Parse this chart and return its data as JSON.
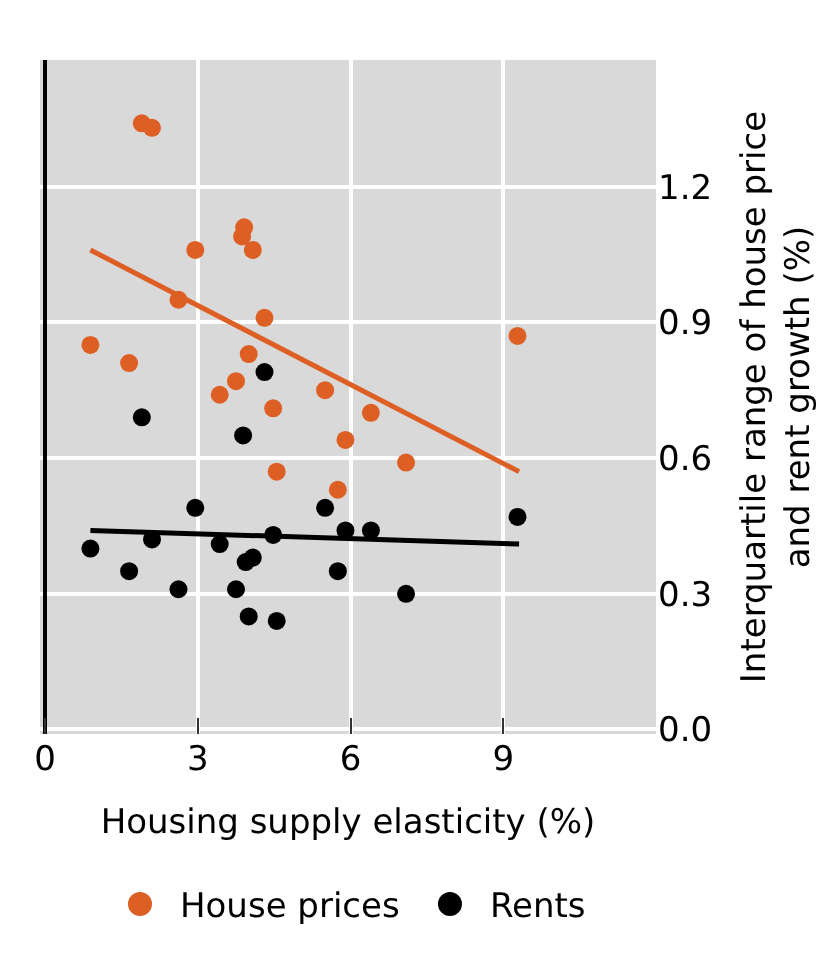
{
  "chart_data": {
    "type": "scatter",
    "xlabel": "Housing supply elasticity (%)",
    "ylabel": "Interquartile range of house price\nand rent growth (%)",
    "xlim": [
      -0.1,
      12
    ],
    "xticks": [
      0,
      3,
      6,
      9
    ],
    "ylim": [
      -0.01,
      1.48
    ],
    "yticks": [
      {
        "value": 0,
        "label": "0.0"
      },
      {
        "value": 0.3,
        "label": "0.3"
      },
      {
        "value": 0.6,
        "label": "0.6"
      },
      {
        "value": 0.9,
        "label": "0.9"
      },
      {
        "value": 1.2,
        "label": "1.2"
      }
    ],
    "grid": true,
    "legend": "bottom",
    "marker": "circle",
    "series": [
      {
        "name": "House prices",
        "color": "#dd5f24",
        "x": [
          1.9,
          2.1,
          2.95,
          3.91,
          3.87,
          4.08,
          2.62,
          4.31,
          0.89,
          9.28,
          1.65,
          4.0,
          3.75,
          3.43,
          5.5,
          4.48,
          6.4,
          5.9,
          7.09,
          4.55,
          5.75
        ],
        "values": [
          1.34,
          1.33,
          1.06,
          1.11,
          1.09,
          1.06,
          0.95,
          0.91,
          0.85,
          0.87,
          0.81,
          0.83,
          0.77,
          0.74,
          0.75,
          0.71,
          0.7,
          0.64,
          0.59,
          0.57,
          0.53
        ]
      },
      {
        "name": "Rents",
        "color": "#000000",
        "x": [
          4.31,
          1.9,
          3.89,
          2.95,
          5.5,
          9.28,
          5.9,
          6.4,
          4.48,
          2.1,
          3.43,
          0.89,
          4.08,
          3.94,
          1.65,
          5.75,
          2.62,
          3.75,
          7.09,
          4.0,
          4.55
        ],
        "values": [
          0.79,
          0.69,
          0.65,
          0.49,
          0.49,
          0.47,
          0.44,
          0.44,
          0.43,
          0.42,
          0.41,
          0.4,
          0.38,
          0.37,
          0.35,
          0.35,
          0.31,
          0.31,
          0.3,
          0.25,
          0.24
        ]
      },
      {
        "type": "line",
        "color": "#dd5f24",
        "x": [
          0.89,
          9.31
        ],
        "values": [
          1.06,
          0.57
        ],
        "marker": "none"
      },
      {
        "type": "line",
        "color": "#000000",
        "x": [
          0.89,
          9.31
        ],
        "values": [
          0.44,
          0.41
        ],
        "marker": "none"
      }
    ]
  }
}
